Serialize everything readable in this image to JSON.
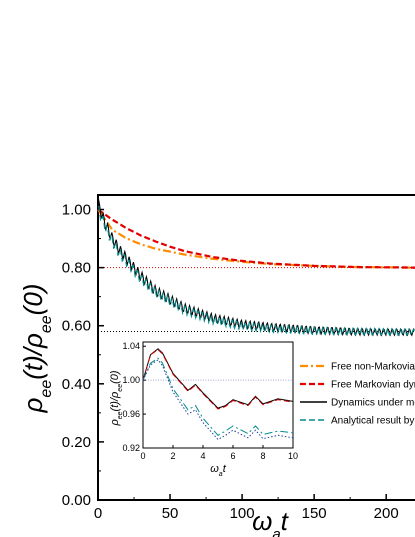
{
  "chart_data": {
    "type": "line",
    "xlabel": "ω_a t",
    "ylabel": "ρ_ee(t)/ρ_ee(0)",
    "xlim": [
      0,
      220
    ],
    "ylim": [
      0.0,
      1.05
    ],
    "x_ticks": [
      "0",
      "50",
      "100",
      "150",
      "200"
    ],
    "y_ticks": [
      "0.00",
      "0.20",
      "0.40",
      "0.60",
      "0.80",
      "1.00"
    ],
    "grid": false,
    "legend_position": "bottom-right",
    "reference_lines": [
      {
        "y": 0.8,
        "color": "#e00000",
        "style": "dotted"
      },
      {
        "y": 0.58,
        "color": "#000000",
        "style": "dotted"
      }
    ],
    "series": [
      {
        "name": "Free non-Markovian",
        "color": "#ff8c00",
        "style": "dash-dot",
        "x": [
          0,
          10,
          20,
          30,
          40,
          50,
          60,
          80,
          100,
          120,
          150,
          180,
          220
        ],
        "y": [
          1.0,
          0.93,
          0.9,
          0.88,
          0.865,
          0.855,
          0.845,
          0.83,
          0.82,
          0.812,
          0.806,
          0.802,
          0.8
        ]
      },
      {
        "name": "Free Markovian dyn",
        "color": "#e00000",
        "style": "dash",
        "x": [
          0,
          10,
          20,
          30,
          40,
          50,
          60,
          80,
          100,
          120,
          150,
          180,
          220
        ],
        "y": [
          1.0,
          0.965,
          0.935,
          0.91,
          0.89,
          0.872,
          0.857,
          0.836,
          0.823,
          0.814,
          0.806,
          0.802,
          0.8
        ]
      },
      {
        "name": "Dynamics under me",
        "color": "#000000",
        "style": "solid",
        "x": [
          0,
          5,
          10,
          15,
          20,
          30,
          40,
          50,
          60,
          80,
          100,
          120,
          150,
          180,
          220
        ],
        "y": [
          1.02,
          0.95,
          0.9,
          0.86,
          0.83,
          0.77,
          0.72,
          0.69,
          0.66,
          0.625,
          0.605,
          0.595,
          0.585,
          0.58,
          0.578
        ]
      },
      {
        "name": "Analytical result by",
        "color": "#008b8b",
        "style": "dash",
        "x": [
          0,
          5,
          10,
          15,
          20,
          30,
          40,
          50,
          60,
          80,
          100,
          120,
          150,
          180,
          220
        ],
        "y": [
          1.0,
          0.94,
          0.89,
          0.85,
          0.82,
          0.76,
          0.715,
          0.685,
          0.655,
          0.62,
          0.6,
          0.59,
          0.582,
          0.579,
          0.577
        ]
      }
    ],
    "inset": {
      "type": "line",
      "xlabel": "ω_a t",
      "ylabel": "ρ_ee(t)/ρ_ee(0)",
      "xlim": [
        0,
        10
      ],
      "ylim": [
        0.92,
        1.045
      ],
      "x_ticks": [
        "0",
        "2",
        "4",
        "6",
        "8",
        "10"
      ],
      "y_ticks": [
        "0.92",
        "0.96",
        "1.00",
        "1.04"
      ],
      "reference_line": {
        "y": 1.0,
        "color": "#8888cc",
        "style": "dotted"
      },
      "series": [
        {
          "color": "#000000",
          "style": "solid",
          "x": [
            0,
            0.5,
            1.0,
            1.3,
            2.0,
            3.0,
            3.5,
            4.0,
            5.0,
            5.5,
            6.0,
            7.0,
            7.5,
            8.0,
            9.0,
            10.0
          ],
          "y": [
            1.0,
            1.03,
            1.037,
            1.032,
            1.008,
            0.988,
            0.995,
            0.985,
            0.967,
            0.97,
            0.977,
            0.971,
            0.981,
            0.972,
            0.978,
            0.975
          ]
        },
        {
          "color": "#cc0000",
          "style": "dash",
          "x": [
            0,
            0.5,
            1.0,
            1.3,
            2.0,
            3.0,
            3.5,
            4.0,
            5.0,
            5.5,
            6.0,
            7.0,
            7.5,
            8.0,
            9.0,
            10.0
          ],
          "y": [
            1.0,
            1.03,
            1.036,
            1.031,
            1.007,
            0.987,
            0.994,
            0.984,
            0.966,
            0.969,
            0.976,
            0.97,
            0.98,
            0.971,
            0.977,
            0.974
          ]
        },
        {
          "color": "#008b8b",
          "style": "dash-dot",
          "x": [
            0,
            0.5,
            1.0,
            1.3,
            2.0,
            3.0,
            3.5,
            4.0,
            5.0,
            5.5,
            6.0,
            7.0,
            7.5,
            8.0,
            9.0,
            10.0
          ],
          "y": [
            1.0,
            1.02,
            1.026,
            1.02,
            0.99,
            0.965,
            0.97,
            0.955,
            0.935,
            0.94,
            0.946,
            0.937,
            0.946,
            0.936,
            0.94,
            0.938
          ]
        },
        {
          "color": "#1f3fa0",
          "style": "dotted",
          "x": [
            0,
            0.5,
            1.0,
            1.3,
            2.0,
            3.0,
            3.5,
            4.0,
            5.0,
            5.5,
            6.0,
            7.0,
            7.5,
            8.0,
            9.0,
            10.0
          ],
          "y": [
            1.0,
            1.018,
            1.024,
            1.017,
            0.986,
            0.96,
            0.965,
            0.95,
            0.93,
            0.935,
            0.941,
            0.932,
            0.941,
            0.931,
            0.935,
            0.932
          ]
        }
      ]
    }
  }
}
